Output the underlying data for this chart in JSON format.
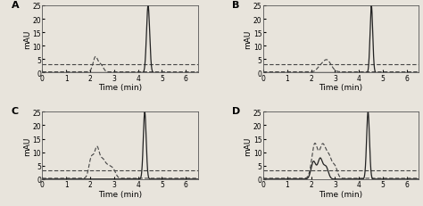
{
  "panels": [
    "A",
    "B",
    "C",
    "D"
  ],
  "xlim": [
    0.0,
    6.5
  ],
  "ylim": [
    0,
    25
  ],
  "yticks": [
    0,
    5,
    10,
    15,
    20,
    25
  ],
  "xticks": [
    0.0,
    1.0,
    2.0,
    3.0,
    4.0,
    5.0,
    6.0
  ],
  "xlabel": "Time (min)",
  "ylabel": "mAU",
  "dashed_level": 3.3,
  "bg_color": "#e8e4dc",
  "solid_color": "#222222",
  "dashed_color": "#444444",
  "panel_label_fontsize": 8,
  "axis_fontsize": 6.5,
  "tick_fontsize": 5.5
}
